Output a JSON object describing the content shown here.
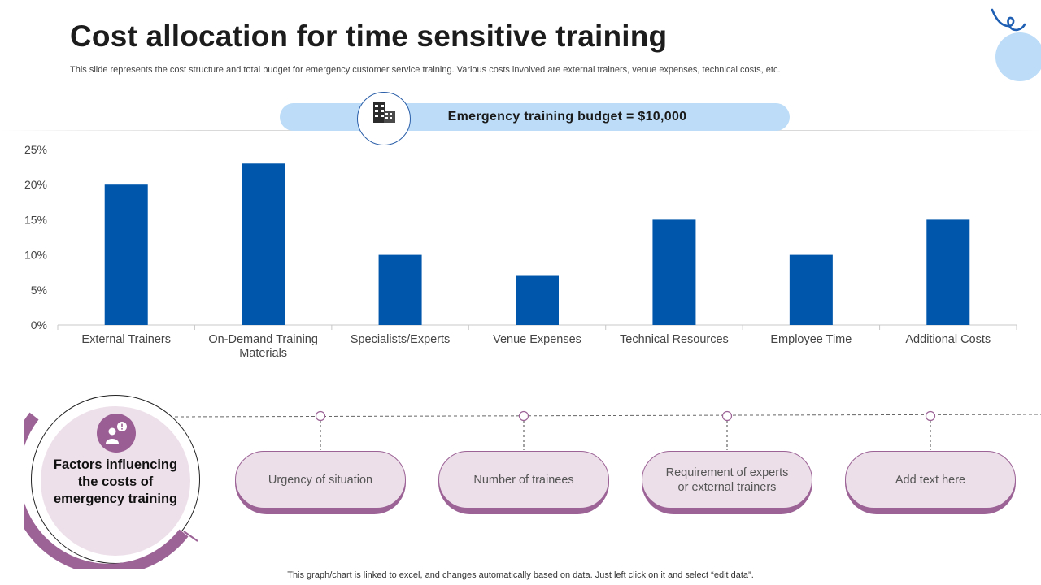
{
  "header": {
    "title": "Cost allocation for time sensitive training",
    "subtitle": "This slide represents the cost structure and total budget for emergency customer service training. Various costs involved are external trainers, venue expenses, technical costs, etc."
  },
  "budget": {
    "label": "Emergency training budget = $10,000",
    "icon": "office-building-icon"
  },
  "chart_data": {
    "type": "bar",
    "title": "",
    "xlabel": "",
    "ylabel": "",
    "categories": [
      [
        "External Trainers"
      ],
      [
        "On-Demand Training",
        "Materials"
      ],
      [
        "Specialists/Experts"
      ],
      [
        "Venue Expenses"
      ],
      [
        "Technical Resources"
      ],
      [
        "Employee Time"
      ],
      [
        "Additional Costs"
      ]
    ],
    "values": [
      20,
      23,
      10,
      7,
      15,
      10,
      15
    ],
    "unit": "%",
    "ylim": [
      0,
      25
    ],
    "yticks": [
      "0%",
      "5%",
      "10%",
      "15%",
      "20%",
      "25%"
    ],
    "grid": false,
    "bar_color": "#0056ab"
  },
  "factors": {
    "title": "Factors influencing the costs of emergency training",
    "title_lines": [
      "Factors influencing",
      "the costs of",
      "emergency training"
    ],
    "icon": "person-alert-icon",
    "items": [
      {
        "lines": [
          "Urgency of situation"
        ]
      },
      {
        "lines": [
          "Number of trainees"
        ]
      },
      {
        "lines": [
          "Requirement of experts",
          "or external trainers"
        ]
      },
      {
        "lines": [
          "Add text here"
        ]
      }
    ]
  },
  "footer": {
    "note": "This graph/chart is linked to excel,  and changes automatically based on data. Just left click on it and select “edit data”."
  },
  "colors": {
    "accent_blue": "#0056ab",
    "light_blue": "#bcdcf7",
    "purple": "#9c6396",
    "light_purple": "#ecdfe9"
  }
}
